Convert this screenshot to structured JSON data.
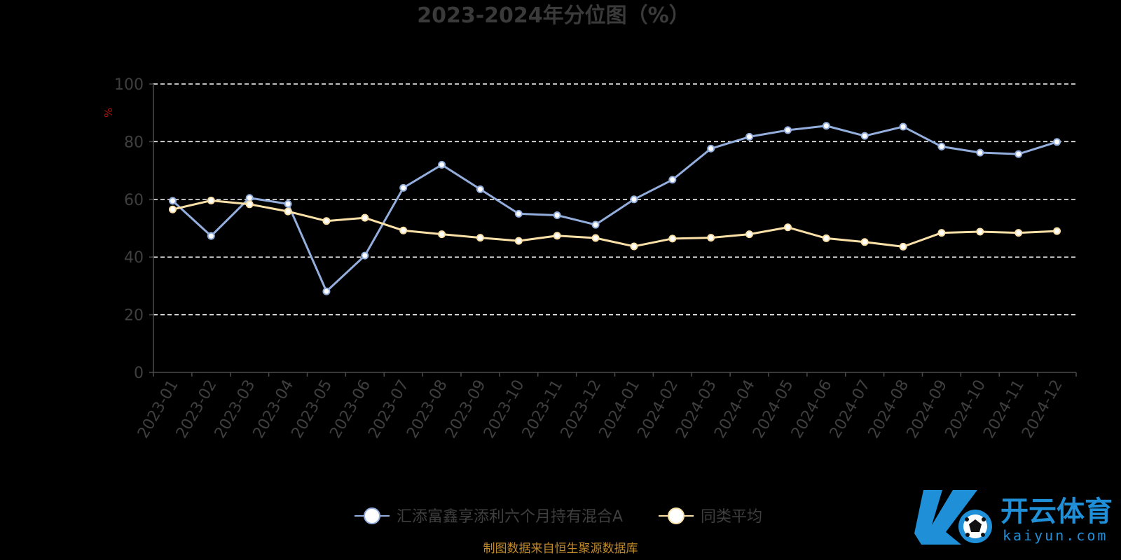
{
  "chart_data": {
    "type": "line",
    "title": "2023-2024年分位图（%）",
    "ylabel": "%",
    "ylim": [
      0,
      100
    ],
    "yticks": [
      0,
      20,
      40,
      60,
      80,
      100
    ],
    "grid": true,
    "legend_position": "bottom",
    "categories": [
      "2023-01",
      "2023-02",
      "2023-03",
      "2023-04",
      "2023-05",
      "2023-06",
      "2023-07",
      "2023-08",
      "2023-09",
      "2023-10",
      "2023-11",
      "2023-12",
      "2024-01",
      "2024-02",
      "2024-03",
      "2024-04",
      "2024-05",
      "2024-06",
      "2024-07",
      "2024-08",
      "2024-09",
      "2024-10",
      "2024-11",
      "2024-12"
    ],
    "series": [
      {
        "name": "汇添富鑫享添利六个月持有混合A",
        "color": "#93aedc",
        "values": [
          59.5,
          47.3,
          60.5,
          58.4,
          28.1,
          40.5,
          64.0,
          72.0,
          63.5,
          55.0,
          54.5,
          51.2,
          60.0,
          66.8,
          77.6,
          81.7,
          84.0,
          85.5,
          82.0,
          85.2,
          78.3,
          76.2,
          75.7,
          79.9
        ]
      },
      {
        "name": "同类平均",
        "color": "#fbe0a8",
        "values": [
          56.5,
          59.6,
          58.3,
          55.8,
          52.5,
          53.6,
          49.2,
          47.9,
          46.7,
          45.6,
          47.4,
          46.6,
          43.7,
          46.4,
          46.7,
          47.9,
          50.3,
          46.5,
          45.2,
          43.6,
          48.4,
          48.8,
          48.4,
          49.0
        ]
      }
    ]
  },
  "source_note": "制图数据来自恒生聚源数据库",
  "watermark": {
    "brand_cn": "开云体育",
    "brand_en": "kaiyun.com"
  },
  "colors": {
    "background": "#000000",
    "grid": "#ffffff",
    "axis": "#4a4a4a"
  }
}
